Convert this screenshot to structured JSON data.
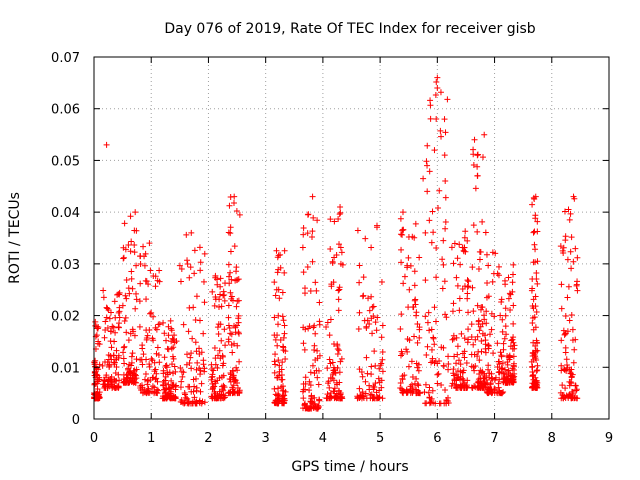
{
  "chart_data": {
    "type": "scatter",
    "title": "Day 076 of 2019, Rate Of TEC Index for receiver gisb",
    "xlabel": "GPS time / hours",
    "ylabel": "ROTI / TECUs",
    "xlim": [
      0,
      9
    ],
    "ylim": [
      0,
      0.07
    ],
    "grid": true,
    "marker": "+",
    "color": "#ff0000",
    "x_ticks": [
      0,
      1,
      2,
      3,
      4,
      5,
      6,
      7,
      8,
      9
    ],
    "x_tick_labels": [
      "0",
      "1",
      "2",
      "3",
      "4",
      "5",
      "6",
      "7",
      "8",
      "9"
    ],
    "y_ticks": [
      0,
      0.01,
      0.02,
      0.03,
      0.04,
      0.05,
      0.06,
      0.07
    ],
    "y_tick_labels": [
      "0",
      "0.01",
      "0.02",
      "0.03",
      "0.04",
      "0.05",
      "0.06",
      "0.07"
    ],
    "clusters": [
      {
        "x": [
          0.0,
          0.1
        ],
        "y": [
          0.004,
          0.02
        ]
      },
      {
        "x": [
          0.15,
          0.45
        ],
        "y": [
          0.006,
          0.025
        ]
      },
      {
        "x": [
          0.5,
          0.75
        ],
        "y": [
          0.007,
          0.04
        ]
      },
      {
        "x": [
          0.8,
          1.15
        ],
        "y": [
          0.005,
          0.035
        ]
      },
      {
        "x": [
          1.2,
          1.45
        ],
        "y": [
          0.004,
          0.02
        ]
      },
      {
        "x": [
          1.5,
          1.95
        ],
        "y": [
          0.003,
          0.036
        ]
      },
      {
        "x": [
          2.05,
          2.3
        ],
        "y": [
          0.004,
          0.03
        ]
      },
      {
        "x": [
          2.35,
          2.55
        ],
        "y": [
          0.005,
          0.043
        ]
      },
      {
        "x": [
          3.15,
          3.35
        ],
        "y": [
          0.003,
          0.033
        ]
      },
      {
        "x": [
          3.65,
          3.95
        ],
        "y": [
          0.002,
          0.043
        ]
      },
      {
        "x": [
          4.05,
          4.35
        ],
        "y": [
          0.004,
          0.041
        ]
      },
      {
        "x": [
          4.6,
          5.05
        ],
        "y": [
          0.004,
          0.039
        ]
      },
      {
        "x": [
          5.35,
          5.7
        ],
        "y": [
          0.005,
          0.04
        ]
      },
      {
        "x": [
          5.75,
          6.2
        ],
        "y": [
          0.003,
          0.066
        ]
      },
      {
        "x": [
          6.25,
          6.55
        ],
        "y": [
          0.006,
          0.037
        ]
      },
      {
        "x": [
          6.6,
          6.85
        ],
        "y": [
          0.006,
          0.055
        ]
      },
      {
        "x": [
          6.85,
          7.15
        ],
        "y": [
          0.005,
          0.034
        ]
      },
      {
        "x": [
          7.15,
          7.35
        ],
        "y": [
          0.007,
          0.03
        ]
      },
      {
        "x": [
          7.65,
          7.75
        ],
        "y": [
          0.006,
          0.043
        ]
      },
      {
        "x": [
          8.15,
          8.45
        ],
        "y": [
          0.004,
          0.043
        ]
      }
    ],
    "points": [
      [
        0.22,
        0.053
      ],
      [
        6.0,
        0.066
      ],
      [
        6.0,
        0.064
      ],
      [
        5.98,
        0.058
      ],
      [
        6.65,
        0.054
      ],
      [
        6.7,
        0.051
      ],
      [
        5.95,
        0.052
      ],
      [
        7.72,
        0.043
      ],
      [
        8.38,
        0.043
      ],
      [
        2.45,
        0.043
      ],
      [
        3.82,
        0.043
      ],
      [
        4.3,
        0.041
      ],
      [
        5.4,
        0.04
      ],
      [
        0.72,
        0.04
      ],
      [
        1.7,
        0.036
      ]
    ]
  }
}
